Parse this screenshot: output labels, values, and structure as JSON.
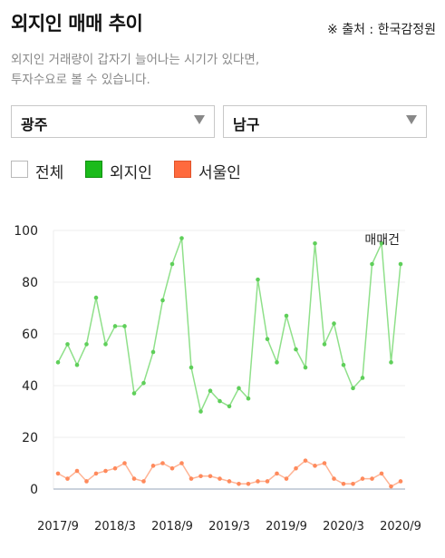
{
  "header": {
    "title": "외지인 매매 추이",
    "source": "※ 출처 : 한국감정원",
    "description_line1": "외지인 거래량이 갑자기 늘어나는 시기가 있다면,",
    "description_line2": "투자수요로 볼 수 있습니다."
  },
  "filters": {
    "region": "광주",
    "district": "남구"
  },
  "legend": [
    {
      "label": "전체",
      "color": "#ffffff",
      "border": "#b9b9b9",
      "checked": false
    },
    {
      "label": "외지인",
      "color": "#1bbb1b",
      "border": "#0f8f0f",
      "checked": true
    },
    {
      "label": "서울인",
      "color": "#ff6a3d",
      "border": "#e0532a",
      "checked": true
    }
  ],
  "colors": {
    "nonresident_line": "#8fe08a",
    "nonresident_point": "#5fcf5a",
    "seoul_line": "#ffb495",
    "seoul_point": "#ff8a5c",
    "grid": "#eeeeee",
    "axis": "#b8c4d0"
  },
  "chart_data": {
    "type": "line",
    "annotation": "매매건",
    "ylim": [
      0,
      100
    ],
    "yticks": [
      0,
      20,
      40,
      60,
      80,
      100
    ],
    "x": [
      "2017/9",
      "2017/10",
      "2017/11",
      "2017/12",
      "2018/1",
      "2018/2",
      "2018/3",
      "2018/4",
      "2018/5",
      "2018/6",
      "2018/7",
      "2018/8",
      "2018/9",
      "2018/10",
      "2018/11",
      "2018/12",
      "2019/1",
      "2019/2",
      "2019/3",
      "2019/4",
      "2019/5",
      "2019/6",
      "2019/7",
      "2019/8",
      "2019/9",
      "2019/10",
      "2019/11",
      "2019/12",
      "2020/1",
      "2020/2",
      "2020/3",
      "2020/4",
      "2020/5",
      "2020/6",
      "2020/7",
      "2020/8",
      "2020/9"
    ],
    "xtick_labels": [
      "2017/9",
      "2018/3",
      "2018/9",
      "2019/3",
      "2019/9",
      "2020/3",
      "2020/9"
    ],
    "series": [
      {
        "key": "nonresident",
        "values": [
          49,
          56,
          48,
          56,
          74,
          56,
          63,
          63,
          37,
          41,
          53,
          73,
          87,
          97,
          47,
          30,
          38,
          34,
          32,
          39,
          35,
          81,
          58,
          49,
          67,
          54,
          47,
          95,
          56,
          64,
          48,
          39,
          43,
          87,
          95,
          49,
          87
        ]
      },
      {
        "key": "seoul",
        "values": [
          6,
          4,
          7,
          3,
          6,
          7,
          8,
          10,
          4,
          3,
          9,
          10,
          8,
          10,
          4,
          5,
          5,
          4,
          3,
          2,
          2,
          3,
          3,
          6,
          4,
          8,
          11,
          9,
          10,
          4,
          2,
          2,
          4,
          4,
          6,
          1,
          3
        ]
      }
    ]
  }
}
